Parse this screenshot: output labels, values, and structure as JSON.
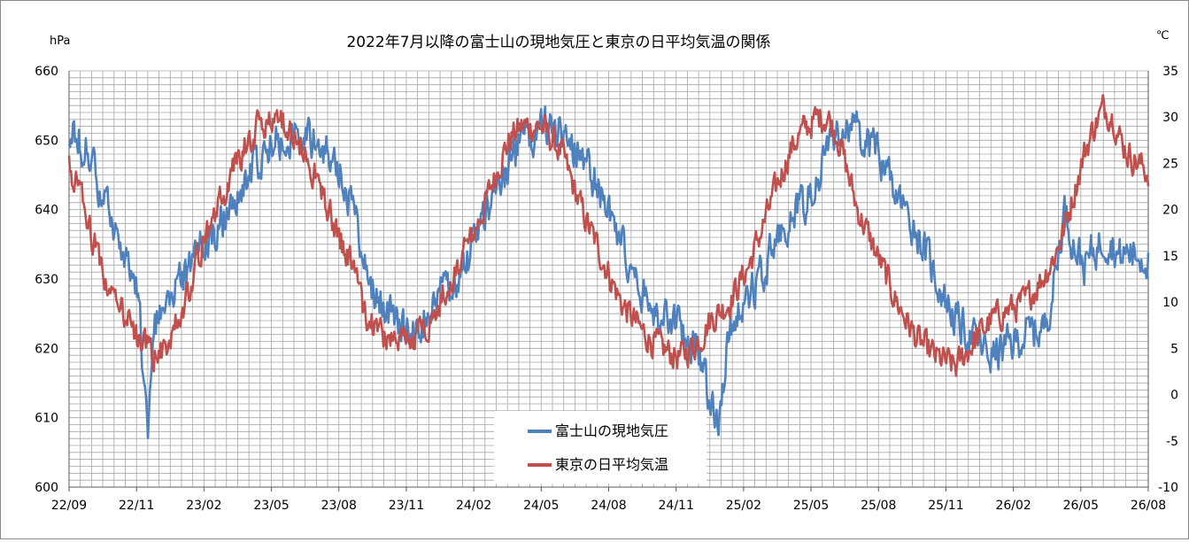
{
  "chart_data": {
    "type": "line",
    "title": "2022年7月以降の富士山の現地気圧と東京の日平均気温の関係",
    "left_unit": "hPa",
    "right_unit": "℃",
    "ylim_left": [
      600,
      660
    ],
    "ylim_right": [
      -10,
      35
    ],
    "left_ticks": [
      "600",
      "610",
      "620",
      "630",
      "640",
      "650",
      "660"
    ],
    "right_ticks": [
      "-10",
      "-5",
      "0",
      "5",
      "10",
      "15",
      "20",
      "25",
      "30",
      "35"
    ],
    "x_tick_labels": [
      "22/09",
      "22/11",
      "23/02",
      "23/05",
      "23/08",
      "23/11",
      "24/02",
      "24/05",
      "24/08",
      "24/11",
      "25/02",
      "25/05",
      "25/08",
      "25/11",
      "26/02",
      "26/05",
      "26/08"
    ],
    "x_range_days": [
      0,
      1095
    ],
    "grid": true,
    "legend_position": "bottom-center",
    "series": [
      {
        "name": "富士山の現地気圧",
        "axis": "left",
        "color": "#4F81BD",
        "x_days": [
          0,
          10,
          20,
          30,
          40,
          50,
          60,
          70,
          75,
          80,
          85,
          90,
          100,
          110,
          120,
          130,
          150,
          170,
          190,
          210,
          230,
          250,
          270,
          290,
          300,
          310,
          330,
          350,
          365,
          375,
          385,
          395,
          405,
          420,
          430,
          440,
          450,
          460,
          480,
          500,
          520,
          540,
          560,
          580,
          600,
          620,
          630,
          640,
          650,
          660,
          670,
          680,
          690,
          700,
          710,
          720,
          730,
          740,
          750,
          760,
          770,
          780,
          790,
          800,
          820,
          840,
          860,
          880,
          900,
          920,
          935,
          950,
          970,
          990,
          1000,
          1010,
          1020,
          1030,
          1040,
          1050,
          1060,
          1065,
          1075,
          1095
        ],
        "values": [
          651,
          650,
          648,
          643,
          639,
          636,
          633,
          627,
          618,
          606,
          623,
          624,
          626,
          629,
          631,
          634,
          637,
          642,
          647,
          650,
          651,
          650,
          647,
          640,
          633,
          628,
          624,
          622,
          625,
          627,
          629,
          631,
          633,
          638,
          642,
          645,
          647,
          650,
          652,
          651,
          648,
          642,
          635,
          628,
          624,
          623,
          621,
          620,
          612,
          610,
          622,
          626,
          627,
          630,
          633,
          636,
          638,
          640,
          642,
          645,
          648,
          651,
          652,
          651,
          648,
          642,
          637,
          630,
          624,
          621,
          619,
          620,
          622,
          623,
          630,
          640,
          635,
          632,
          634,
          636,
          635,
          633,
          634,
          633
        ]
      },
      {
        "name": "東京の日平均気温",
        "axis": "right",
        "color": "#C0504D",
        "x_days": [
          0,
          10,
          20,
          30,
          40,
          50,
          60,
          70,
          80,
          90,
          100,
          110,
          120,
          130,
          150,
          170,
          190,
          210,
          230,
          250,
          270,
          290,
          300,
          310,
          330,
          350,
          365,
          375,
          385,
          395,
          405,
          420,
          430,
          440,
          450,
          460,
          480,
          500,
          520,
          540,
          560,
          580,
          600,
          620,
          630,
          640,
          650,
          660,
          670,
          680,
          690,
          700,
          710,
          720,
          730,
          740,
          750,
          760,
          770,
          780,
          790,
          800,
          820,
          840,
          860,
          880,
          900,
          920,
          935,
          950,
          970,
          990,
          1000,
          1010,
          1020,
          1030,
          1040,
          1050,
          1060,
          1065,
          1075,
          1095
        ],
        "values": [
          25,
          22,
          18,
          15,
          12,
          10,
          8,
          6,
          5,
          4,
          6,
          8,
          11,
          15,
          20,
          25,
          29,
          30,
          28,
          24,
          18,
          13,
          9,
          7,
          6,
          6,
          8,
          10,
          12,
          14,
          16,
          20,
          23,
          26,
          28,
          29,
          29,
          26,
          20,
          15,
          10,
          7,
          5,
          4,
          5,
          6,
          8,
          9,
          10,
          12,
          14,
          17,
          20,
          23,
          26,
          28,
          29,
          30,
          30,
          28,
          24,
          20,
          15,
          10,
          6,
          4,
          3,
          6,
          8,
          9,
          10,
          13,
          15,
          18,
          22,
          26,
          29,
          31,
          30,
          28,
          26,
          24
        ]
      }
    ]
  }
}
